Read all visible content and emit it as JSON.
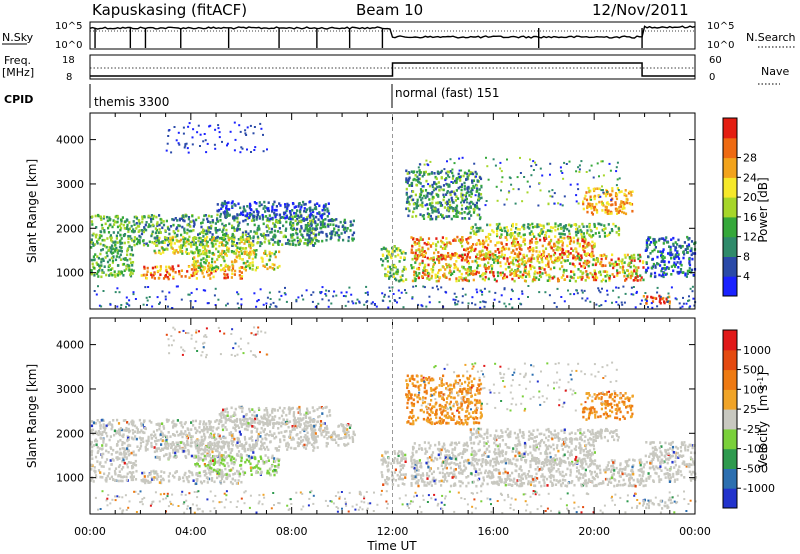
{
  "header": {
    "station": "Kapuskasing (fitACF)",
    "beam": "Beam 10",
    "date": "12/Nov/2011"
  },
  "top_panels": {
    "nsky": {
      "left_label": "N.Sky",
      "right_label": "N.Search",
      "ticks_left": [
        "10^5",
        "10^0"
      ],
      "ticks_right": [
        "10^5",
        "10^0"
      ]
    },
    "freq": {
      "left_label_1": "Freq.",
      "left_label_2": "[MHz]",
      "right_label": "Nave",
      "ticks_left": [
        "18",
        "8"
      ],
      "ticks_right": [
        "60",
        "0"
      ]
    },
    "cpid": {
      "label": "CPID",
      "segments": [
        {
          "label": "themis 3300",
          "start": "00:00",
          "end": "12:00"
        },
        {
          "label": "normal (fast) 151",
          "start": "12:00",
          "end": "24:00"
        }
      ]
    }
  },
  "chart_data": [
    {
      "type": "heatmap",
      "title": "",
      "ylabel": "Slant Range [km]",
      "xlabel": "Time UT",
      "x_ticks": [
        "00:00",
        "04:00",
        "08:00",
        "12:00",
        "16:00",
        "20:00",
        "00:00"
      ],
      "xlim_hours": [
        0,
        24
      ],
      "ylim_km": [
        180,
        4600
      ],
      "y_ticks": [
        "1000",
        "2000",
        "3000",
        "4000"
      ],
      "colorbar": {
        "label": "Power [dB]",
        "ticks": [
          "4",
          "8",
          "12",
          "16",
          "20",
          "24",
          "28"
        ],
        "colors": [
          "#1a22ff",
          "#2a4aa8",
          "#2f8a6a",
          "#35a83a",
          "#a6d62a",
          "#f6e82a",
          "#f2a31c",
          "#ee6a12",
          "#e41e12"
        ]
      }
    },
    {
      "type": "heatmap",
      "title": "",
      "ylabel": "Slant Range [km]",
      "xlabel": "Time UT",
      "x_ticks": [
        "00:00",
        "04:00",
        "08:00",
        "12:00",
        "16:00",
        "20:00",
        "00:00"
      ],
      "xlim_hours": [
        0,
        24
      ],
      "ylim_km": [
        180,
        4600
      ],
      "y_ticks": [
        "1000",
        "2000",
        "3000",
        "4000"
      ],
      "colorbar": {
        "label_main": "Velocity",
        "label_unit": "[m s",
        "label_exp": "-1",
        "label_close": "]",
        "ticks": [
          "1000",
          "500",
          "100",
          "25",
          "-25",
          "-100",
          "-500",
          "-1000"
        ],
        "colors": [
          "#2233cc",
          "#2c6fb0",
          "#2e9a4e",
          "#7ad03a",
          "#c8c8c0",
          "#f0a428",
          "#ee7a12",
          "#e44a10",
          "#e01818"
        ]
      }
    }
  ],
  "axis_label": "Time UT"
}
